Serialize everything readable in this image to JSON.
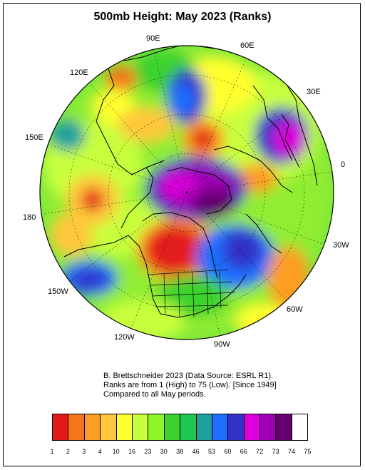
{
  "title": "500mb Height: May 2023 (Ranks)",
  "longitude_labels": {
    "l90e": "90E",
    "l60e": "60E",
    "l120e": "120E",
    "l30e": "30E",
    "l150e": "150E",
    "l0": "0",
    "l180": "180",
    "l30w": "30W",
    "l150w": "150W",
    "l60w": "60W",
    "l120w": "120W",
    "l90w": "90W"
  },
  "credit": {
    "line1": "B. Brettschneider 2023 (Data Source: ESRL R1).",
    "line2": "Ranks are from 1 (High) to 75 (Low). [Since 1949]",
    "line3": "Compared to all May periods."
  },
  "legend": {
    "ticks": [
      "1",
      "2",
      "3",
      "4",
      "10",
      "16",
      "23",
      "30",
      "38",
      "46",
      "53",
      "60",
      "66",
      "72",
      "73",
      "74",
      "75"
    ],
    "colors": [
      "#e31a1c",
      "#f5761a",
      "#fd9d24",
      "#fec83a",
      "#ffff2e",
      "#c8ff3c",
      "#8cf527",
      "#3cd22e",
      "#1ec850",
      "#1ea0a0",
      "#1e6eff",
      "#3232c8",
      "#dc00dc",
      "#a000b4",
      "#64006e",
      "#ffffff"
    ]
  }
}
